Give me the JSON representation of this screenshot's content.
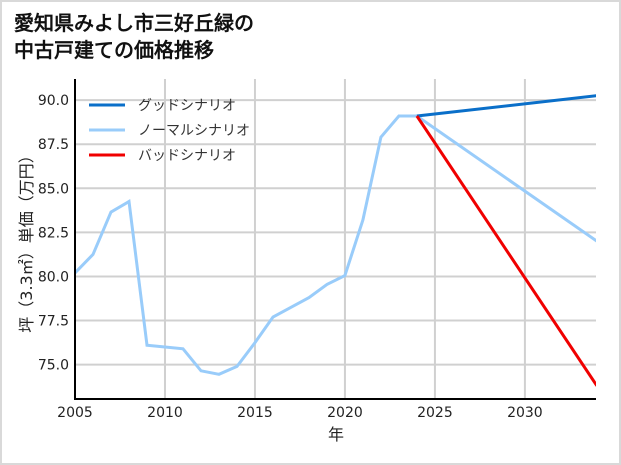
{
  "title_line1": "愛知県みよし市三好丘緑の",
  "title_line2": "中古戸建ての価格推移",
  "chart_data": {
    "type": "line",
    "title": "愛知県みよし市三好丘緑の中古戸建ての価格推移",
    "xlabel": "年",
    "ylabel": "坪（3.3㎡）単価（万円）",
    "xlim": [
      2005,
      2033.95
    ],
    "ylim": [
      73.05,
      91.2
    ],
    "xticks": [
      2005,
      2010,
      2015,
      2020,
      2025,
      2030
    ],
    "yticks": [
      75.0,
      77.5,
      80.0,
      82.5,
      85.0,
      87.5,
      90.0
    ],
    "xtick_labels": [
      "2005",
      "2010",
      "2015",
      "2020",
      "2025",
      "2030"
    ],
    "ytick_labels": [
      "75.0",
      "77.5",
      "80.0",
      "82.5",
      "85.0",
      "87.5",
      "90.0"
    ],
    "grid": true,
    "legend_position": "upper left",
    "series": [
      {
        "name": "グッドシナリオ",
        "color": "#0a6fc9",
        "x": [
          2024,
          2034
        ],
        "values": [
          89.1,
          90.25
        ]
      },
      {
        "name": "ノーマルシナリオ",
        "color": "#99ccfa",
        "x": [
          2005,
          2006,
          2007,
          2008,
          2009,
          2010,
          2011,
          2012,
          2013,
          2014,
          2015,
          2016,
          2017,
          2018,
          2019,
          2020,
          2021,
          2022,
          2023,
          2024,
          2034
        ],
        "values": [
          80.2,
          81.25,
          83.65,
          84.25,
          76.1,
          76.0,
          75.9,
          74.65,
          74.45,
          74.9,
          76.25,
          77.7,
          78.25,
          78.8,
          79.55,
          80.05,
          83.2,
          87.9,
          89.1,
          89.1,
          82.0
        ]
      },
      {
        "name": "バッドシナリオ",
        "color": "#f00000",
        "x": [
          2024,
          2034
        ],
        "values": [
          89.1,
          73.8
        ]
      }
    ]
  }
}
